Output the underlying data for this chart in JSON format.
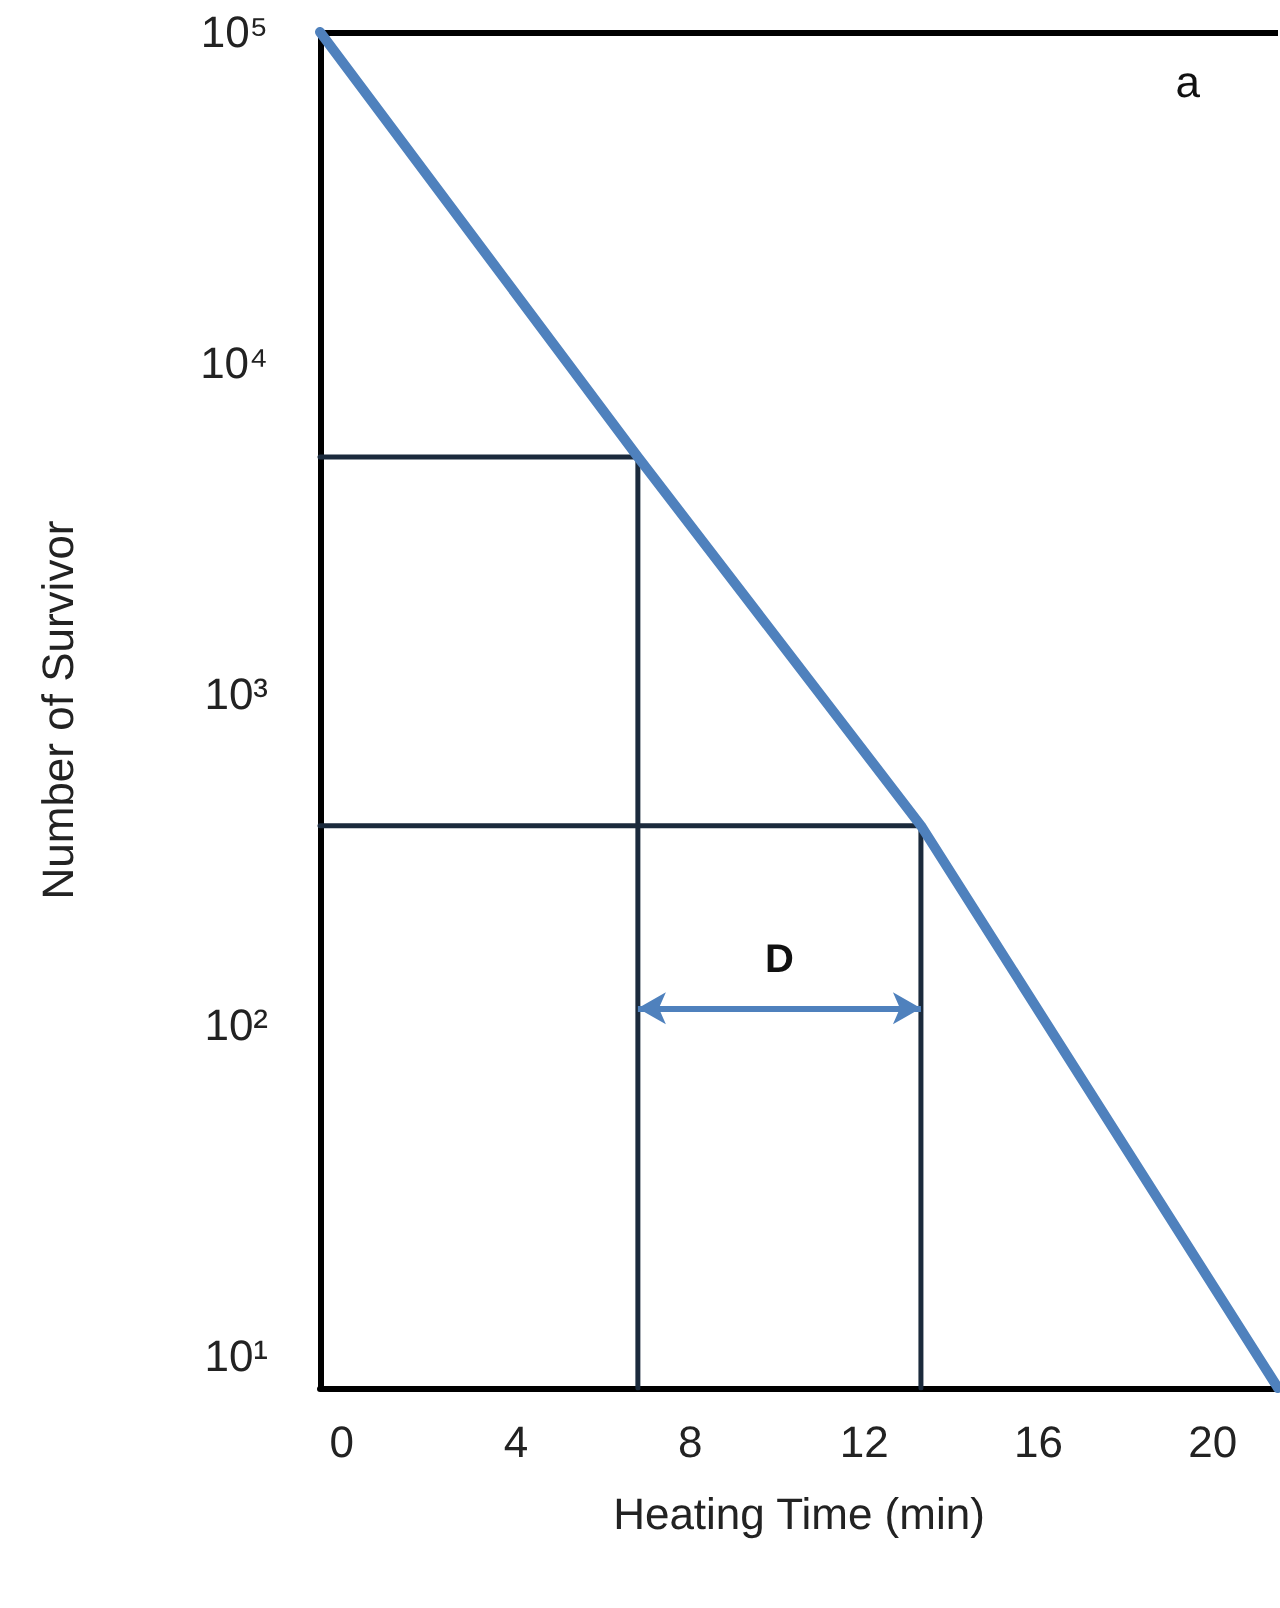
{
  "chart_data": {
    "type": "line",
    "xlabel": "Heating Time (min)",
    "ylabel": "Number of Survivor",
    "log": "y",
    "xlim": [
      -0.5,
      21.5
    ],
    "xticks": [
      0,
      4,
      8,
      12,
      16,
      20
    ],
    "ylim": [
      8,
      100000
    ],
    "yticks": [
      {
        "value": 10,
        "label": "10¹"
      },
      {
        "value": 100,
        "label": "10²"
      },
      {
        "value": 1000,
        "label": "10³"
      },
      {
        "value": 10000,
        "label": "10⁴"
      },
      {
        "value": 100000,
        "label": "10⁵"
      }
    ],
    "grid": false,
    "marker": "none",
    "line_style": "solid",
    "series": [
      {
        "color": "#4f81bd",
        "x": [
          -0.5,
          6.8,
          13.3,
          21.5
        ],
        "values": [
          100000,
          5200,
          400,
          8
        ]
      },
      {
        "color": "#1b2a3c",
        "x": [
          -0.5,
          6.8,
          6.8
        ],
        "values": [
          5200,
          5200,
          8
        ]
      },
      {
        "color": "#1b2a3c",
        "x": [
          -0.5,
          13.3,
          13.3
        ],
        "values": [
          400,
          400,
          8
        ]
      }
    ],
    "annotations": [
      "a",
      "D"
    ]
  }
}
